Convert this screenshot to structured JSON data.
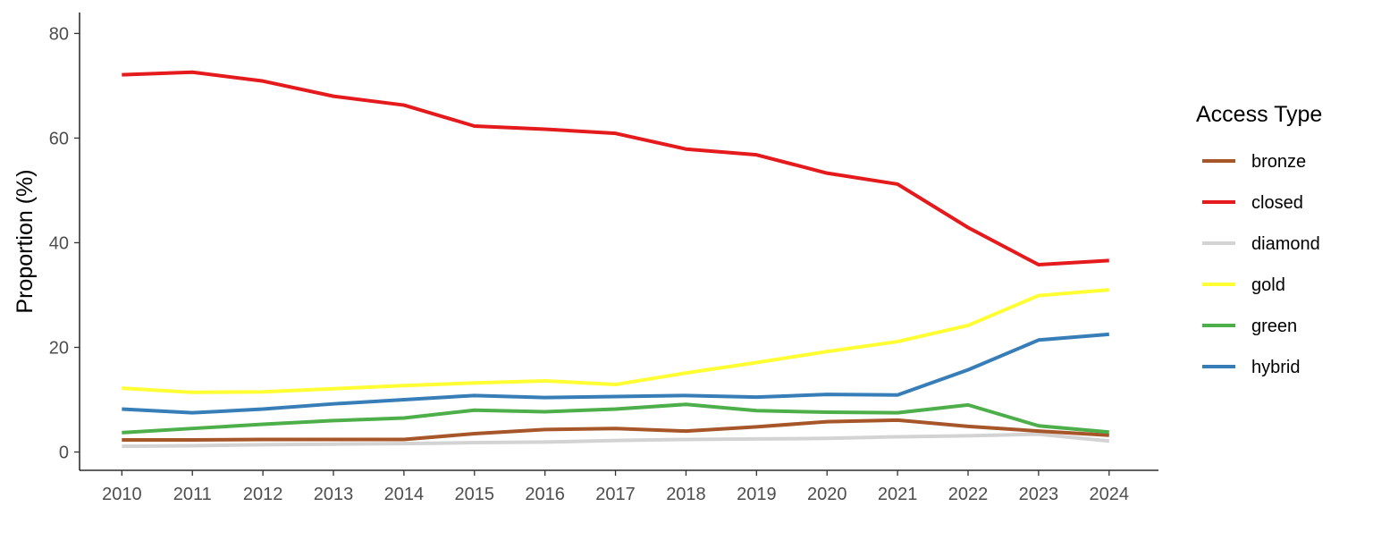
{
  "chart_data": {
    "type": "line",
    "title": "",
    "xlabel": "",
    "ylabel": "Proportion (%)",
    "x": [
      2010,
      2011,
      2012,
      2013,
      2014,
      2015,
      2016,
      2017,
      2018,
      2019,
      2020,
      2021,
      2022,
      2023,
      2024
    ],
    "xticks": [
      "2010",
      "2011",
      "2012",
      "2013",
      "2014",
      "2015",
      "2016",
      "2017",
      "2018",
      "2019",
      "2020",
      "2021",
      "2022",
      "2023",
      "2024"
    ],
    "yticks": [
      "0",
      "20",
      "40",
      "60",
      "80"
    ],
    "ylim": [
      -3.5,
      84
    ],
    "xlim": [
      2009.4,
      2024.7
    ],
    "grid": false,
    "legend": {
      "title": "Access Type",
      "placement": "right"
    },
    "series": [
      {
        "name": "bronze",
        "color": "#A65628",
        "values": [
          2.3,
          2.3,
          2.4,
          2.4,
          2.4,
          3.5,
          4.3,
          4.5,
          4.0,
          4.8,
          5.8,
          6.1,
          4.9,
          4.0,
          3.2
        ]
      },
      {
        "name": "closed",
        "color": "#E41A1C",
        "values": [
          72.1,
          72.6,
          70.9,
          68.0,
          66.3,
          62.3,
          61.7,
          60.9,
          57.9,
          56.8,
          53.3,
          51.2,
          42.9,
          35.8,
          36.6
        ]
      },
      {
        "name": "diamond",
        "color": "#D3D3D3",
        "values": [
          1.1,
          1.2,
          1.4,
          1.5,
          1.6,
          1.8,
          1.9,
          2.2,
          2.4,
          2.5,
          2.6,
          2.9,
          3.1,
          3.4,
          2.1
        ]
      },
      {
        "name": "gold",
        "color": "#FFFF33",
        "values": [
          12.2,
          11.4,
          11.5,
          12.1,
          12.7,
          13.2,
          13.6,
          12.9,
          15.1,
          17.1,
          19.2,
          21.1,
          24.2,
          29.9,
          31.0
        ]
      },
      {
        "name": "green",
        "color": "#4DAF4A",
        "values": [
          3.7,
          4.5,
          5.3,
          6.0,
          6.5,
          8.0,
          7.7,
          8.2,
          9.1,
          7.9,
          7.6,
          7.5,
          9.0,
          5.0,
          3.8
        ]
      },
      {
        "name": "hybrid",
        "color": "#377EB8",
        "values": [
          8.2,
          7.5,
          8.2,
          9.2,
          10.0,
          10.8,
          10.4,
          10.6,
          10.8,
          10.5,
          11.0,
          10.9,
          15.7,
          21.4,
          22.5
        ]
      }
    ]
  }
}
